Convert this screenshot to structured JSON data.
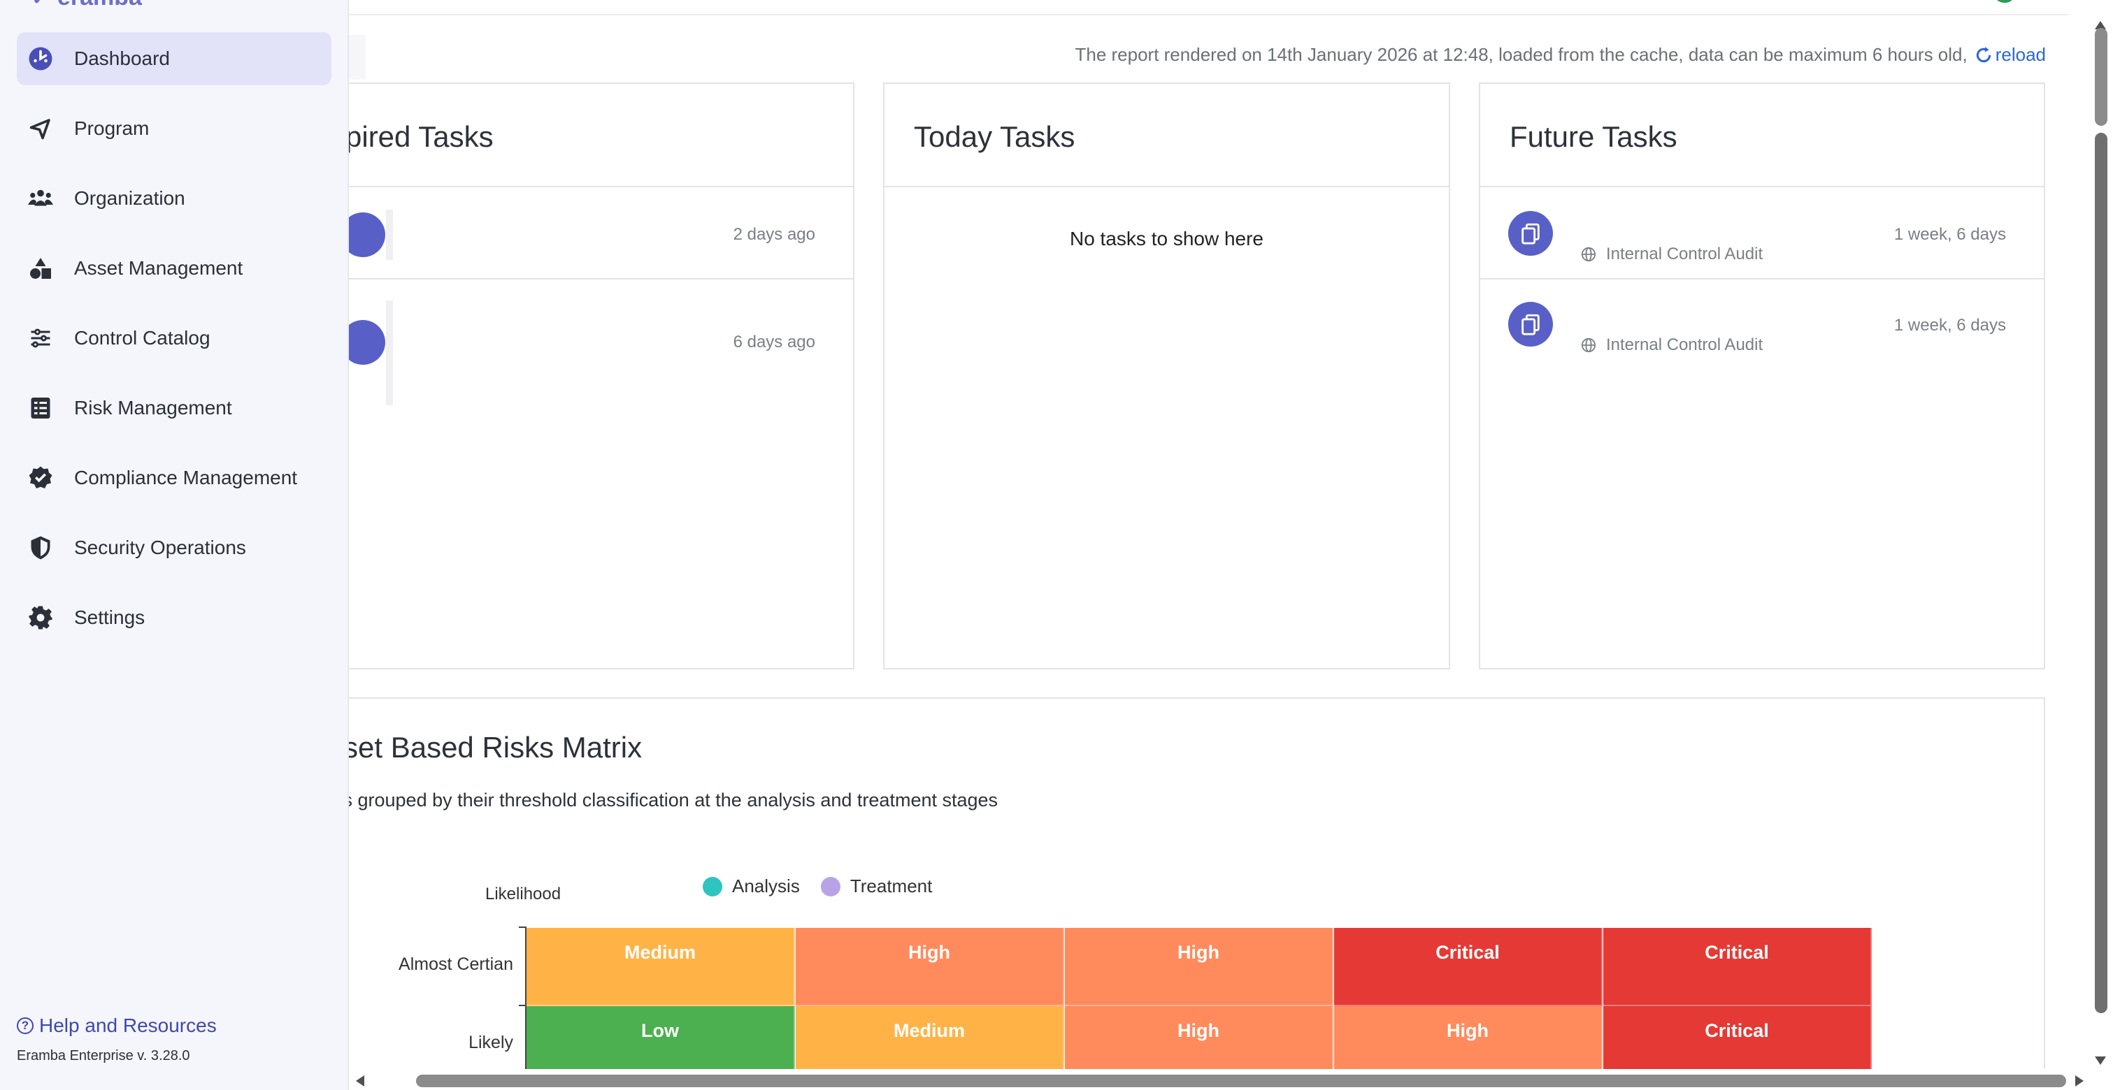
{
  "sidebar": {
    "items": [
      {
        "label": "Dashboard",
        "icon": "dashboard-icon",
        "active": true
      },
      {
        "label": "Program",
        "icon": "program-icon"
      },
      {
        "label": "Organization",
        "icon": "organization-icon"
      },
      {
        "label": "Asset Management",
        "icon": "asset-management-icon"
      },
      {
        "label": "Control Catalog",
        "icon": "control-catalog-icon"
      },
      {
        "label": "Risk Management",
        "icon": "risk-management-icon"
      },
      {
        "label": "Compliance Management",
        "icon": "compliance-management-icon"
      },
      {
        "label": "Security Operations",
        "icon": "security-operations-icon"
      },
      {
        "label": "Settings",
        "icon": "settings-icon"
      }
    ],
    "help_label": "Help and Resources",
    "version": "Eramba Enterprise v. 3.28.0"
  },
  "report": {
    "info": "The report rendered on 14th January 2026 at 12:48, loaded from the cache, data can be maximum 6 hours old,",
    "reload_label": "reload"
  },
  "expired": {
    "title": "pired Tasks",
    "rows": [
      {
        "time": "2 days ago"
      },
      {
        "time": "6 days ago"
      }
    ]
  },
  "today": {
    "title": "Today Tasks",
    "empty": "No tasks to show here"
  },
  "future": {
    "title": "Future Tasks",
    "rows": [
      {
        "sub": "Internal Control Audit",
        "time": "1 week, 6 days"
      },
      {
        "sub": "Internal Control Audit",
        "time": "1 week, 6 days"
      }
    ]
  },
  "matrix": {
    "title": "sset Based Risks Matrix",
    "subtitle": "ks grouped by their threshold classification at the analysis and treatment stages",
    "axis_title": "Likelihood",
    "legend": [
      {
        "name": "Analysis",
        "color": "#2ec4c0"
      },
      {
        "name": "Treatment",
        "color": "#b9a3e6"
      }
    ],
    "rows": [
      {
        "label": "Almost Certian",
        "cells": [
          "Medium",
          "High",
          "High",
          "Critical",
          "Critical"
        ]
      },
      {
        "label": "Likely",
        "cells": [
          "Low",
          "Medium",
          "High",
          "High",
          "Critical"
        ]
      }
    ],
    "level_colors": {
      "Low": "#4caf50",
      "Medium": "#ffb347",
      "High": "#ff8a5c",
      "Critical": "#e53935"
    }
  }
}
